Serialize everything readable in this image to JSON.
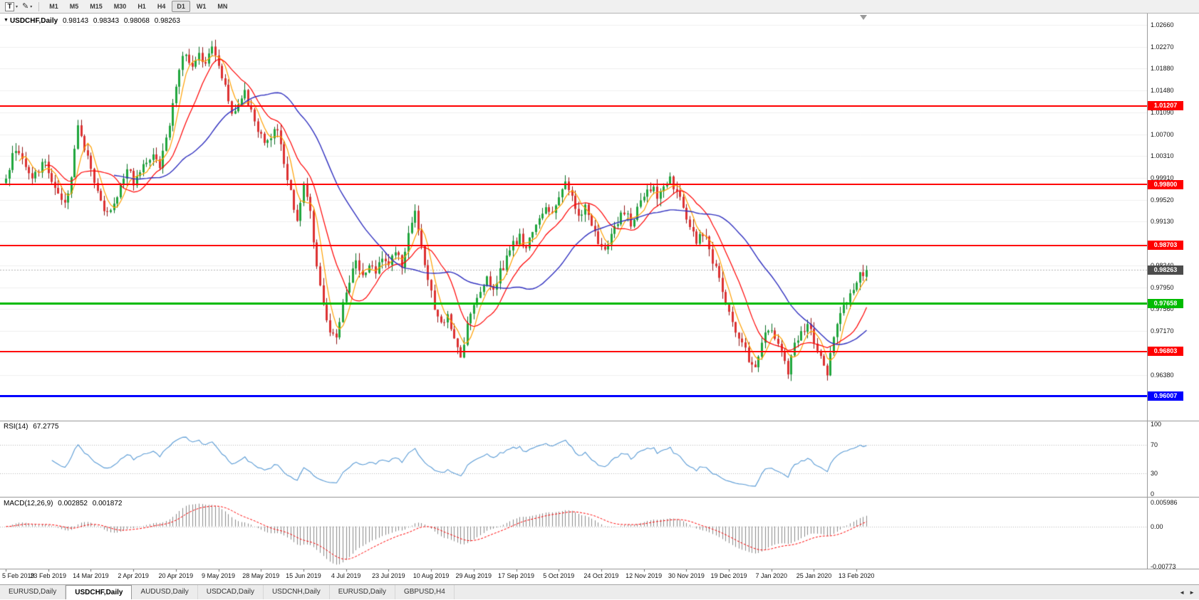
{
  "toolbar": {
    "text_tool_label": "T",
    "pencil_tool_glyph": "✎",
    "caret": "▾",
    "timeframes": [
      "M1",
      "M5",
      "M15",
      "M30",
      "H1",
      "H4",
      "D1",
      "W1",
      "MN"
    ],
    "active_timeframe": "D1"
  },
  "chart": {
    "title": "USDCHF,Daily",
    "marker": "▼",
    "ohlc": {
      "open": "0.98143",
      "high": "0.98343",
      "low": "0.98068",
      "close": "0.98263"
    }
  },
  "price_axis": {
    "ticks": [
      "1.02660",
      "1.02270",
      "1.01880",
      "1.01480",
      "1.01090",
      "1.00700",
      "1.00310",
      "0.99910",
      "0.99520",
      "0.99130",
      "0.98740",
      "0.98340",
      "0.97950",
      "0.97560",
      "0.97170",
      "0.96780",
      "0.96380",
      "0.95990"
    ]
  },
  "hlines": [
    {
      "value": "1.01207",
      "color": "#ff0000",
      "width": 2
    },
    {
      "value": "0.99800",
      "color": "#ff0000",
      "width": 2
    },
    {
      "value": "0.98703",
      "color": "#ff0000",
      "width": 2
    },
    {
      "value": "0.97658",
      "color": "#00bb00",
      "width": 3
    },
    {
      "value": "0.96803",
      "color": "#ff0000",
      "width": 2
    },
    {
      "value": "0.96007",
      "color": "#0000ff",
      "width": 3
    }
  ],
  "current_price": {
    "value": "0.98263",
    "bg": "#4c4c4c"
  },
  "rsi": {
    "title": "RSI(14)",
    "value": "67.2775",
    "levels": [
      "100",
      "70",
      "30",
      "0"
    ],
    "color": "#5a9bd5"
  },
  "macd": {
    "title": "MACD(12,26,9)",
    "value_main": "0.002852",
    "value_signal": "0.001872",
    "scale": [
      "0.005986",
      "0.00",
      "-0.00773"
    ]
  },
  "date_axis": [
    "5 Feb 2019",
    "23 Feb 2019",
    "14 Mar 2019",
    "2 Apr 2019",
    "20 Apr 2019",
    "9 May 2019",
    "28 May 2019",
    "15 Jun 2019",
    "4 Jul 2019",
    "23 Jul 2019",
    "10 Aug 2019",
    "29 Aug 2019",
    "17 Sep 2019",
    "5 Oct 2019",
    "24 Oct 2019",
    "12 Nov 2019",
    "30 Nov 2019",
    "19 Dec 2019",
    "7 Jan 2020",
    "25 Jan 2020",
    "13 Feb 2020"
  ],
  "tabs": {
    "items": [
      "EURUSD,Daily",
      "USDCHF,Daily",
      "AUDUSD,Daily",
      "USDCAD,Daily",
      "USDCNH,Daily",
      "EURUSD,Daily",
      "GBPUSD,H4"
    ],
    "active_index": 1,
    "scroll_left": "◄",
    "scroll_right": "►"
  },
  "chart_data": {
    "type": "candlestick",
    "symbol": "USDCHF",
    "timeframe": "Daily",
    "days": 264,
    "ylim": [
      0.956,
      1.028
    ],
    "seed": 20200213,
    "label_step_days": 13,
    "last_candle": {
      "o": 0.98143,
      "h": 0.98343,
      "l": 0.98068,
      "c": 0.98263
    },
    "ma": {
      "fast": 5,
      "mid": 13,
      "slow": 34
    },
    "indicators": {
      "rsi": {
        "period": 14,
        "last": 67.2775
      },
      "macd": {
        "fast": 12,
        "slow": 26,
        "signal": 9,
        "last_main": 0.002852,
        "last_signal": 0.001872
      }
    },
    "levels": [
      1.01207,
      0.998,
      0.98703,
      0.97658,
      0.96803,
      0.96007
    ],
    "colors": {
      "bull": "#1fa63c",
      "bull_border": "#0a6e23",
      "bear": "#dd3131",
      "bear_border": "#8e1515",
      "ma_fast": "#ffa000",
      "ma_mid": "#ff0000",
      "ma_slow": "#3030bf",
      "macd_hist": "#8a8a8a",
      "macd_signal": "#ff0000",
      "grid": "#efefef"
    },
    "close_waypoints": [
      [
        0,
        0.9985
      ],
      [
        2,
        1.003
      ],
      [
        4,
        1.0042
      ],
      [
        6,
        1.0012
      ],
      [
        8,
        0.9992
      ],
      [
        10,
        1.0008
      ],
      [
        12,
        1.0018
      ],
      [
        14,
        0.9988
      ],
      [
        16,
        0.996
      ],
      [
        18,
        0.9942
      ],
      [
        20,
        0.9998
      ],
      [
        22,
        1.0088
      ],
      [
        24,
        1.0045
      ],
      [
        26,
        1.0008
      ],
      [
        29,
        0.9952
      ],
      [
        31,
        0.9925
      ],
      [
        33,
        0.9945
      ],
      [
        35,
        0.9975
      ],
      [
        37,
        1.0008
      ],
      [
        39,
        0.9985
      ],
      [
        41,
        1.0
      ],
      [
        43,
        1.0018
      ],
      [
        45,
        1.0035
      ],
      [
        47,
        1.0012
      ],
      [
        49,
        1.006
      ],
      [
        51,
        1.012
      ],
      [
        53,
        1.0185
      ],
      [
        55,
        1.022
      ],
      [
        57,
        1.019
      ],
      [
        59,
        1.0215
      ],
      [
        61,
        1.0195
      ],
      [
        63,
        1.0222
      ],
      [
        65,
        1.0198
      ],
      [
        67,
        1.0152
      ],
      [
        69,
        1.0108
      ],
      [
        71,
        1.0125
      ],
      [
        73,
        1.0142
      ],
      [
        75,
        1.011
      ],
      [
        77,
        1.0082
      ],
      [
        79,
        1.0055
      ],
      [
        81,
        1.007
      ],
      [
        83,
        1.0078
      ],
      [
        85,
        1.0022
      ],
      [
        87,
        0.9968
      ],
      [
        89,
        0.9912
      ],
      [
        91,
        0.9975
      ],
      [
        93,
        0.9935
      ],
      [
        95,
        0.9832
      ],
      [
        97,
        0.977
      ],
      [
        99,
        0.9718
      ],
      [
        101,
        0.9705
      ],
      [
        103,
        0.9762
      ],
      [
        105,
        0.9808
      ],
      [
        107,
        0.9842
      ],
      [
        109,
        0.9812
      ],
      [
        111,
        0.9842
      ],
      [
        113,
        0.9822
      ],
      [
        115,
        0.9852
      ],
      [
        117,
        0.9828
      ],
      [
        119,
        0.9862
      ],
      [
        121,
        0.9835
      ],
      [
        123,
        0.9898
      ],
      [
        125,
        0.9928
      ],
      [
        127,
        0.9868
      ],
      [
        129,
        0.9812
      ],
      [
        131,
        0.9752
      ],
      [
        133,
        0.9728
      ],
      [
        135,
        0.9748
      ],
      [
        137,
        0.9705
      ],
      [
        139,
        0.9668
      ],
      [
        141,
        0.9728
      ],
      [
        143,
        0.9758
      ],
      [
        145,
        0.9782
      ],
      [
        147,
        0.9812
      ],
      [
        149,
        0.9792
      ],
      [
        151,
        0.9822
      ],
      [
        153,
        0.9845
      ],
      [
        155,
        0.9872
      ],
      [
        157,
        0.9888
      ],
      [
        159,
        0.986
      ],
      [
        161,
        0.9895
      ],
      [
        163,
        0.9922
      ],
      [
        165,
        0.9945
      ],
      [
        167,
        0.9925
      ],
      [
        169,
        0.9958
      ],
      [
        171,
        0.9988
      ],
      [
        173,
        0.9952
      ],
      [
        175,
        0.9918
      ],
      [
        177,
        0.9945
      ],
      [
        179,
        0.9908
      ],
      [
        181,
        0.9878
      ],
      [
        183,
        0.9858
      ],
      [
        185,
        0.9885
      ],
      [
        187,
        0.9912
      ],
      [
        189,
        0.9932
      ],
      [
        191,
        0.9908
      ],
      [
        193,
        0.9938
      ],
      [
        195,
        0.9962
      ],
      [
        197,
        0.9975
      ],
      [
        199,
        0.9962
      ],
      [
        201,
        0.9978
      ],
      [
        203,
        0.9988
      ],
      [
        205,
        0.9968
      ],
      [
        207,
        0.994
      ],
      [
        209,
        0.9905
      ],
      [
        211,
        0.9878
      ],
      [
        213,
        0.9895
      ],
      [
        215,
        0.9862
      ],
      [
        217,
        0.9828
      ],
      [
        219,
        0.9788
      ],
      [
        221,
        0.9748
      ],
      [
        223,
        0.9718
      ],
      [
        225,
        0.9692
      ],
      [
        227,
        0.9668
      ],
      [
        229,
        0.965
      ],
      [
        231,
        0.9698
      ],
      [
        233,
        0.9722
      ],
      [
        235,
        0.9702
      ],
      [
        237,
        0.9678
      ],
      [
        239,
        0.9642
      ],
      [
        241,
        0.969
      ],
      [
        243,
        0.9715
      ],
      [
        245,
        0.9728
      ],
      [
        247,
        0.9702
      ],
      [
        249,
        0.9665
      ],
      [
        251,
        0.9642
      ],
      [
        253,
        0.97
      ],
      [
        255,
        0.9745
      ],
      [
        257,
        0.9772
      ],
      [
        259,
        0.9798
      ],
      [
        261,
        0.982
      ],
      [
        263,
        0.98263
      ]
    ]
  }
}
